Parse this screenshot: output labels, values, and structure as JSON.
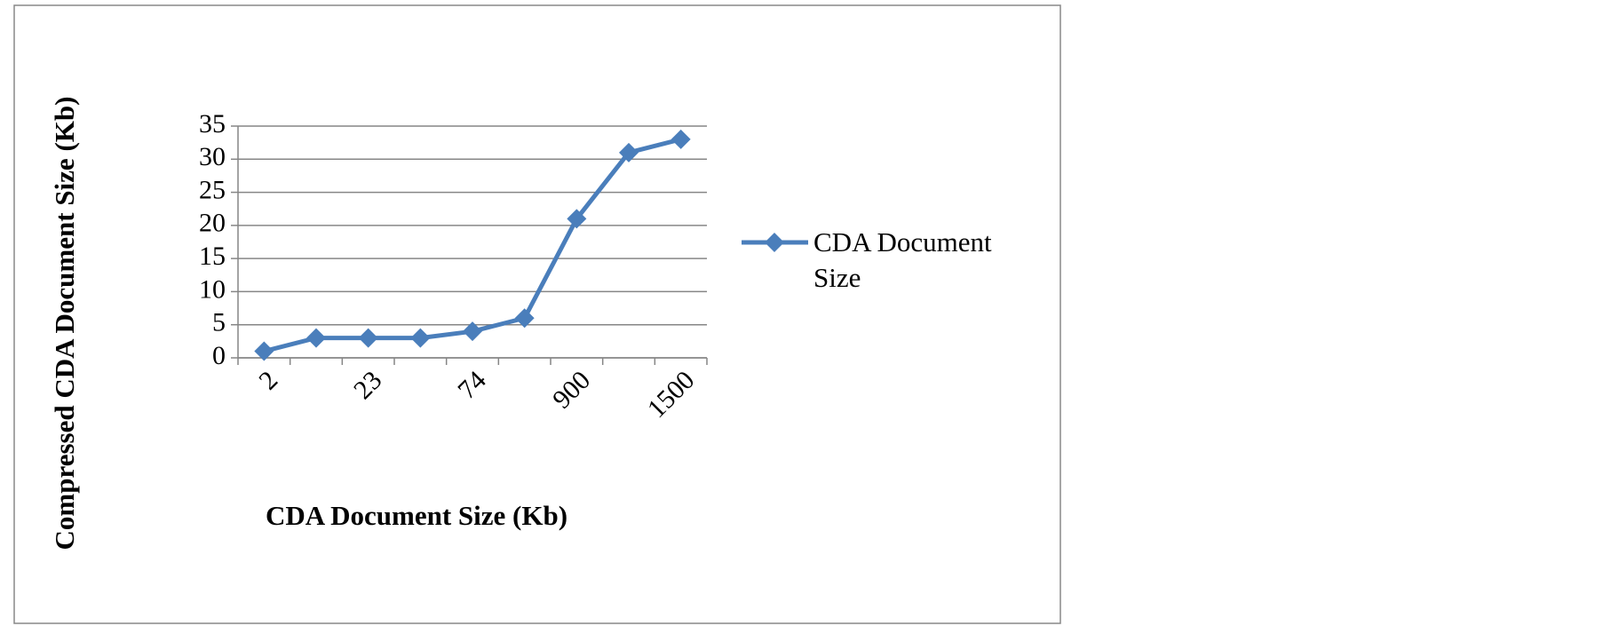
{
  "chart_data": {
    "type": "line",
    "x_label": "CDA Document Size (Kb)",
    "y_label": "Compressed CDA Document Size (Kb)",
    "categories": [
      "2",
      null,
      "23",
      null,
      "74",
      null,
      "900",
      null,
      "1500"
    ],
    "series": [
      {
        "name": "CDA Document Size",
        "color": "#4a7ebb",
        "values": [
          1,
          3,
          3,
          3,
          4,
          6,
          21,
          31,
          33
        ]
      }
    ],
    "ylim": [
      0,
      35
    ],
    "yticks": [
      0,
      5,
      10,
      15,
      20,
      25,
      30,
      35
    ],
    "grid": true,
    "legend": "right"
  }
}
